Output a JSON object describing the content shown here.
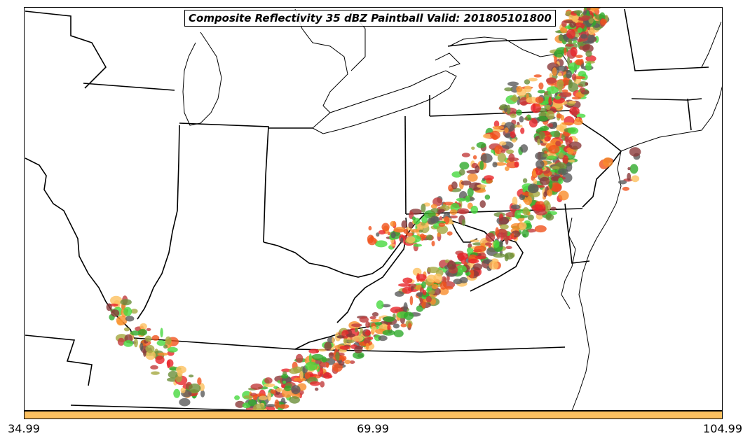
{
  "title": "Composite Reflectivity 35 dBZ Paintball Valid: 201805101800",
  "colorbar": {
    "color": "#fcc05f",
    "ticks": [
      "34.99",
      "69.99",
      "104.99"
    ]
  },
  "member_colors": [
    "#e8262b",
    "#f0531d",
    "#f98c2a",
    "#fcc05f",
    "#a4a83f",
    "#6b8e3a",
    "#2faa2c",
    "#47d83e",
    "#5b5b5b",
    "#8b3a3a",
    "#c23c3c"
  ]
}
